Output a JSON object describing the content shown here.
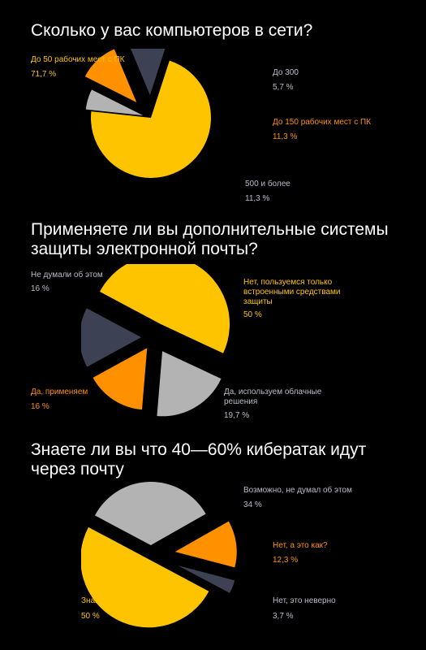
{
  "colors": {
    "background": "#000000",
    "title": "#ffffff",
    "yellow": "#FFC400",
    "orange": "#FF9100",
    "gray": "#B3B3B3",
    "slate": "#3C4253",
    "label_light": "#B9BDC9"
  },
  "chart_data": [
    {
      "type": "pie",
      "title": "Сколько у вас компьютеров в сети?",
      "slices": [
        {
          "label": "До 50 рабочих мест с ПК",
          "value": 71.7,
          "value_text": "71,7 %",
          "color": "#FFC400"
        },
        {
          "label": "До 300",
          "value": 5.7,
          "value_text": "5,7 %",
          "color": "#B3B3B3"
        },
        {
          "label": "До 150  рабочих мест с ПК",
          "value": 11.3,
          "value_text": "11,3 %",
          "color": "#FF9100"
        },
        {
          "label": "500 и более",
          "value": 11.3,
          "value_text": "11,3 %",
          "color": "#3C4253"
        }
      ]
    },
    {
      "type": "pie",
      "title": "Применяете ли вы дополнительные системы\nзащиты электронной почты?",
      "slices": [
        {
          "label": "Нет, пользуемся только\nвстроенными средствами\nзащиты",
          "value": 50,
          "value_text": "50 %",
          "color": "#FFC400"
        },
        {
          "label": "Да, используем облачные\nрешения",
          "value": 19.7,
          "value_text": "19,7 %",
          "color": "#B3B3B3"
        },
        {
          "label": "Да, применяем",
          "value": 16,
          "value_text": "16 %",
          "color": "#FF9100"
        },
        {
          "label": "Не думали об этом",
          "value": 16,
          "value_text": "16 %",
          "color": "#3C4253"
        }
      ]
    },
    {
      "type": "pie",
      "title": "Знаете ли вы что 40—60% кибератак идут\nчерез почту",
      "slices": [
        {
          "label": "Возможно, не думал об этом",
          "value": 34,
          "value_text": "34 %",
          "color": "#B3B3B3"
        },
        {
          "label": "Нет, а это как?",
          "value": 12.3,
          "value_text": "12,3 %",
          "color": "#FF9100"
        },
        {
          "label": "Нет, это неверно",
          "value": 3.7,
          "value_text": "3,7 %",
          "color": "#3C4253"
        },
        {
          "label": "Знаю",
          "value": 50,
          "value_text": "50 %",
          "color": "#FFC400"
        }
      ]
    }
  ]
}
